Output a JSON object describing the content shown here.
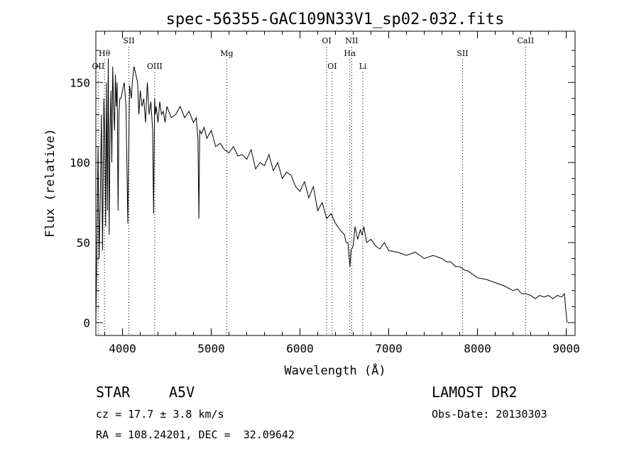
{
  "chart_data": {
    "type": "line",
    "title": "spec-56355-GAC109N33V1_sp02-032.fits",
    "xlabel": "Wavelength (Å)",
    "ylabel": "Flux (relative)",
    "xlim": [
      3700,
      9100
    ],
    "ylim": [
      -8,
      182
    ],
    "x_ticks": [
      4000,
      5000,
      6000,
      7000,
      8000,
      9000
    ],
    "y_ticks": [
      0,
      50,
      100,
      150
    ],
    "series": [
      {
        "name": "flux",
        "x": [
          3700,
          3712,
          3725,
          3737,
          3750,
          3762,
          3775,
          3790,
          3800,
          3810,
          3820,
          3830,
          3840,
          3850,
          3860,
          3870,
          3880,
          3890,
          3900,
          3910,
          3920,
          3930,
          3940,
          3950,
          3960,
          3970,
          3985,
          4000,
          4020,
          4040,
          4060,
          4080,
          4101,
          4110,
          4130,
          4150,
          4170,
          4185,
          4200,
          4220,
          4240,
          4260,
          4280,
          4300,
          4320,
          4340,
          4350,
          4362,
          4370,
          4380,
          4400,
          4420,
          4440,
          4460,
          4480,
          4500,
          4550,
          4600,
          4650,
          4700,
          4750,
          4800,
          4830,
          4850,
          4861,
          4870,
          4890,
          4920,
          4950,
          5000,
          5050,
          5100,
          5150,
          5200,
          5250,
          5300,
          5350,
          5400,
          5450,
          5500,
          5550,
          5600,
          5650,
          5700,
          5750,
          5800,
          5850,
          5900,
          5950,
          6000,
          6050,
          6100,
          6150,
          6200,
          6250,
          6300,
          6350,
          6400,
          6450,
          6500,
          6520,
          6540,
          6563,
          6575,
          6600,
          6620,
          6650,
          6680,
          6700,
          6720,
          6750,
          6800,
          6850,
          6900,
          6950,
          7000,
          7100,
          7200,
          7300,
          7400,
          7500,
          7600,
          7650,
          7700,
          7750,
          7800,
          7850,
          7900,
          7950,
          8000,
          8100,
          8200,
          8300,
          8400,
          8450,
          8500,
          8550,
          8600,
          8650,
          8700,
          8750,
          8800,
          8850,
          8900,
          8950,
          8980,
          9000,
          9010
        ],
        "values": [
          0,
          45,
          110,
          40,
          80,
          130,
          45,
          140,
          120,
          60,
          150,
          70,
          165,
          55,
          120,
          145,
          100,
          160,
          135,
          120,
          155,
          135,
          150,
          70,
          130,
          140,
          140,
          145,
          150,
          135,
          62,
          148,
          140,
          150,
          160,
          155,
          150,
          130,
          145,
          135,
          140,
          125,
          150,
          130,
          138,
          120,
          68,
          140,
          130,
          135,
          125,
          138,
          130,
          132,
          125,
          135,
          128,
          130,
          135,
          128,
          132,
          125,
          128,
          115,
          65,
          120,
          118,
          122,
          115,
          120,
          110,
          112,
          108,
          106,
          110,
          104,
          105,
          102,
          108,
          96,
          100,
          98,
          105,
          95,
          100,
          90,
          94,
          92,
          85,
          82,
          88,
          78,
          85,
          70,
          75,
          65,
          68,
          62,
          58,
          55,
          50,
          50,
          35,
          45,
          48,
          60,
          52,
          58,
          55,
          60,
          50,
          52,
          48,
          46,
          50,
          45,
          44,
          42,
          44,
          40,
          42,
          40,
          38,
          38,
          35,
          35,
          33,
          32,
          30,
          28,
          27,
          25,
          23,
          20,
          21,
          18,
          18,
          17,
          15,
          17,
          16,
          17,
          15,
          17,
          16,
          18,
          5,
          0
        ]
      }
    ],
    "line_labels": [
      {
        "label": "Hθ",
        "wavelength": 3797,
        "row": "mid"
      },
      {
        "label": "OII",
        "wavelength": 3727,
        "row": "low"
      },
      {
        "label": "SII",
        "wavelength": 4072,
        "row": "high"
      },
      {
        "label": "OIII",
        "wavelength": 4363,
        "row": "low"
      },
      {
        "label": "Mg",
        "wavelength": 5175,
        "row": "mid"
      },
      {
        "label": "OI",
        "wavelength": 6300,
        "row": "high"
      },
      {
        "label": "OI",
        "wavelength": 6363,
        "row": "low"
      },
      {
        "label": "NII",
        "wavelength": 6583,
        "row": "high"
      },
      {
        "label": "Hα",
        "wavelength": 6563,
        "row": "mid"
      },
      {
        "label": "Li",
        "wavelength": 6708,
        "row": "low"
      },
      {
        "label": "SII",
        "wavelength": 7832,
        "row": "mid"
      },
      {
        "label": "CaII",
        "wavelength": 8542,
        "row": "high"
      }
    ]
  },
  "info": {
    "class": "STAR",
    "subclass": "A5V",
    "survey": "LAMOST DR2",
    "cz": "cz = 17.7 ± 3.8 km/s",
    "obs_date": "Obs-Date: 20130303",
    "coords": "RA = 108.24201, DEC =  32.09642"
  }
}
